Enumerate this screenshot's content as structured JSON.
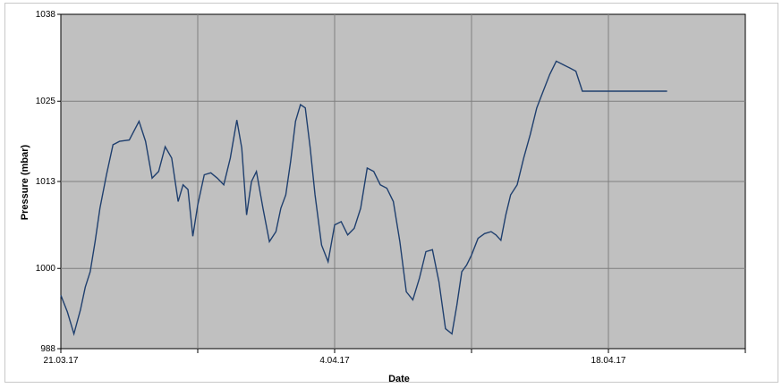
{
  "chart_data": {
    "type": "line",
    "title": "",
    "xlabel": "Date",
    "ylabel": "Pressure (mbar)",
    "x_ticks": [
      "21.03.17",
      "4.04.17",
      "18.04.17"
    ],
    "y_ticks": [
      988,
      1000,
      1013,
      1025,
      1038
    ],
    "ylim": [
      988,
      1038
    ],
    "xlim": [
      "21.03.17",
      "25.04.17"
    ],
    "grid": true,
    "legend": "none",
    "plot_background": "#c0c0c0",
    "line_color": "#1f3f6e",
    "series": [
      {
        "x": [
          "21.03.17",
          "21.03.17",
          "21.03.17",
          "22.03.17",
          "22.03.17",
          "22.03.17",
          "22.03.17",
          "23.03.17",
          "23.03.17",
          "23.03.17",
          "24.03.17",
          "24.03.17",
          "25.03.17",
          "25.03.17",
          "25.03.17",
          "26.03.17",
          "26.03.17",
          "26.03.17",
          "27.03.17",
          "27.03.17",
          "27.03.17",
          "27.03.17",
          "28.03.17",
          "28.03.17",
          "28.03.17",
          "29.03.17",
          "29.03.17",
          "29.03.17",
          "30.03.17",
          "30.03.17",
          "30.03.17",
          "30.03.17",
          "31.03.17",
          "31.03.17",
          "31.03.17",
          "1.04.17",
          "1.04.17",
          "1.04.17",
          "1.04.17",
          "2.04.17",
          "2.04.17",
          "2.04.17",
          "2.04.17",
          "3.04.17",
          "3.04.17",
          "3.04.17",
          "4.04.17",
          "4.04.17",
          "4.04.17",
          "5.04.17",
          "5.04.17",
          "5.04.17",
          "6.04.17",
          "6.04.17",
          "6.04.17",
          "7.04.17",
          "7.04.17",
          "7.04.17",
          "8.04.17",
          "8.04.17",
          "8.04.17",
          "9.04.17",
          "9.04.17",
          "9.04.17",
          "10.04.17",
          "10.04.17",
          "10.04.17",
          "10.04.17",
          "11.04.17",
          "11.04.17",
          "11.04.17",
          "12.04.17",
          "12.04.17",
          "12.04.17",
          "12.04.17",
          "13.04.17",
          "13.04.17",
          "13.04.17",
          "14.04.17",
          "14.04.17",
          "14.04.17",
          "15.04.17",
          "15.04.17",
          "15.04.17",
          "16.04.17",
          "16.04.17",
          "16.04.17",
          "17.04.17",
          "17.04.17",
          "17.04.17",
          "18.04.17",
          "18.04.17",
          "18.04.17",
          "19.04.17",
          "19.04.17",
          "19.04.17",
          "19.04.17",
          "20.04.17",
          "20.04.17",
          "20.04.17",
          "21.04.17"
        ],
        "y": [
          996.0,
          993.5,
          990.2,
          993.8,
          997.2,
          999.5,
          1004.0,
          1009.0,
          1014.0,
          1018.5,
          1019.0,
          1019.2,
          1022.0,
          1019.0,
          1013.5,
          1014.5,
          1018.2,
          1016.5,
          1010.0,
          1012.5,
          1011.8,
          1004.8,
          1009.5,
          1014.0,
          1014.3,
          1013.5,
          1012.5,
          1016.5,
          1022.2,
          1018.0,
          1008.0,
          1013.0,
          1014.5,
          1009.0,
          1004.0,
          1005.5,
          1009.0,
          1011.0,
          1016.0,
          1022.0,
          1024.5,
          1024.0,
          1018.0,
          1011.0,
          1003.5,
          1001.0,
          1006.5,
          1007.0,
          1005.0,
          1006.0,
          1009.0,
          1015.0,
          1014.5,
          1012.5,
          1012.0,
          1010.0,
          1004.0,
          996.5,
          995.3,
          998.5,
          1002.5,
          1002.8,
          998.0,
          991.0,
          990.2,
          994.5,
          999.5,
          1000.5,
          1002.0,
          1004.5,
          1005.2,
          1005.5,
          1005.0,
          1004.2,
          1008.0,
          1011.0,
          1012.5,
          1016.5,
          1020.0,
          1024.0,
          1026.5,
          1029.0,
          1031.0,
          1030.5,
          1030.0,
          1029.5,
          1026.5,
          1026.5,
          1026.5,
          1026.5,
          1026.5,
          1026.5,
          1026.5,
          1026.5,
          1026.5,
          1026.5,
          1026.5,
          1026.5,
          1026.5,
          1026.5,
          1026.5
        ]
      }
    ]
  }
}
